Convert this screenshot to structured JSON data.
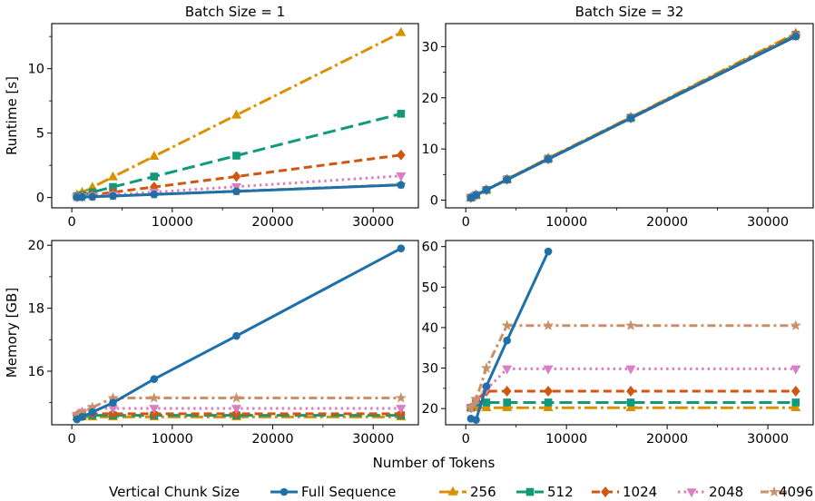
{
  "figure": {
    "xlabel": "Number of Tokens",
    "legend_title": "Vertical Chunk Size"
  },
  "colors": {
    "Full Sequence": "#1f6fa8",
    "256": "#d99100",
    "512": "#10997a",
    "1024": "#cf5711",
    "2048": "#d97fc4",
    "4096": "#c9916a"
  },
  "chart_data": [
    {
      "type": "line",
      "title": "Batch Size = 1",
      "ylabel": "Runtime [s]",
      "xlim": [
        -2000,
        34500
      ],
      "ylim": [
        -0.8,
        13.5
      ],
      "xticks": [
        0,
        10000,
        20000,
        30000
      ],
      "xtick_labels": [
        "0",
        "10000",
        "20000",
        "30000"
      ],
      "yticks": [
        0,
        5,
        10
      ],
      "ytick_labels": [
        "0",
        "5",
        "10"
      ],
      "x": [
        512,
        1024,
        2048,
        4096,
        8192,
        16384,
        32768
      ],
      "series": [
        {
          "name": "Full Sequence",
          "values": [
            0.02,
            0.03,
            0.06,
            0.12,
            0.24,
            0.48,
            0.98
          ]
        },
        {
          "name": "256",
          "values": [
            0.2,
            0.4,
            0.8,
            1.6,
            3.2,
            6.4,
            12.8
          ]
        },
        {
          "name": "512",
          "values": [
            0.1,
            0.2,
            0.41,
            0.82,
            1.63,
            3.25,
            6.5
          ]
        },
        {
          "name": "1024",
          "values": [
            0.06,
            0.1,
            0.2,
            0.41,
            0.82,
            1.63,
            3.3
          ]
        },
        {
          "name": "2048",
          "values": [
            0.04,
            0.06,
            0.11,
            0.21,
            0.42,
            0.84,
            1.68
          ]
        },
        {
          "name": "4096",
          "values": [
            0.03,
            0.05,
            0.07,
            0.13,
            0.25,
            0.5,
            1.0
          ]
        }
      ]
    },
    {
      "type": "line",
      "title": "Batch Size = 32",
      "ylabel": "",
      "xlim": [
        -2000,
        34500
      ],
      "ylim": [
        -1.5,
        34.5
      ],
      "xticks": [
        0,
        10000,
        20000,
        30000
      ],
      "xtick_labels": [
        "0",
        "10000",
        "20000",
        "30000"
      ],
      "yticks": [
        0,
        10,
        20,
        30
      ],
      "ytick_labels": [
        "0",
        "10",
        "20",
        "30"
      ],
      "x": [
        512,
        1024,
        2048,
        4096,
        8192,
        16384,
        32768
      ],
      "series": [
        {
          "name": "Full Sequence",
          "values": [
            0.5,
            1.0,
            2.0,
            4.0,
            8.0,
            16.0,
            32.0
          ]
        },
        {
          "name": "256",
          "values": [
            0.5,
            1.0,
            2.0,
            4.1,
            8.2,
            16.2,
            32.6
          ]
        },
        {
          "name": "512",
          "values": [
            0.5,
            1.0,
            2.0,
            4.05,
            8.1,
            16.1,
            32.3
          ]
        },
        {
          "name": "1024",
          "values": [
            0.5,
            1.0,
            2.0,
            4.05,
            8.1,
            16.1,
            32.3
          ]
        },
        {
          "name": "2048",
          "values": [
            0.5,
            1.0,
            2.0,
            4.0,
            8.0,
            16.0,
            32.1
          ]
        },
        {
          "name": "4096",
          "values": [
            0.5,
            1.0,
            2.0,
            4.0,
            8.0,
            16.0,
            32.0
          ]
        }
      ]
    },
    {
      "type": "line",
      "title": "",
      "ylabel": "Memory [GB]",
      "xlim": [
        -2000,
        34500
      ],
      "ylim": [
        14.3,
        20.15
      ],
      "xticks": [
        0,
        10000,
        20000,
        30000
      ],
      "xtick_labels": [
        "0",
        "10000",
        "20000",
        "30000"
      ],
      "yticks": [
        16,
        18,
        20
      ],
      "ytick_labels": [
        "16",
        "18",
        "20"
      ],
      "x": [
        512,
        1024,
        2048,
        4096,
        8192,
        16384,
        32768
      ],
      "series": [
        {
          "name": "Full Sequence",
          "values": [
            14.47,
            14.55,
            14.7,
            15.0,
            15.75,
            17.12,
            19.9
          ]
        },
        {
          "name": "256",
          "values": [
            14.55,
            14.55,
            14.55,
            14.55,
            14.55,
            14.55,
            14.55
          ]
        },
        {
          "name": "512",
          "values": [
            14.58,
            14.6,
            14.6,
            14.6,
            14.6,
            14.6,
            14.6
          ]
        },
        {
          "name": "1024",
          "values": [
            14.6,
            14.65,
            14.65,
            14.65,
            14.65,
            14.65,
            14.65
          ]
        },
        {
          "name": "2048",
          "values": [
            14.6,
            14.7,
            14.82,
            14.82,
            14.82,
            14.82,
            14.82
          ]
        },
        {
          "name": "4096",
          "values": [
            14.6,
            14.7,
            14.85,
            15.15,
            15.15,
            15.15,
            15.15
          ]
        }
      ]
    },
    {
      "type": "line",
      "title": "",
      "ylabel": "",
      "xlim": [
        -2000,
        34500
      ],
      "ylim": [
        16.0,
        61.5
      ],
      "xticks": [
        0,
        10000,
        20000,
        30000
      ],
      "xtick_labels": [
        "0",
        "10000",
        "20000",
        "30000"
      ],
      "yticks": [
        20,
        30,
        40,
        50,
        60
      ],
      "ytick_labels": [
        "20",
        "30",
        "40",
        "50",
        "60"
      ],
      "x": [
        512,
        1024,
        2048,
        4096,
        8192,
        16384,
        32768
      ],
      "series": [
        {
          "name": "Full Sequence",
          "values": [
            17.5,
            17.2,
            25.5,
            36.8,
            58.8,
            null,
            null
          ]
        },
        {
          "name": "256",
          "values": [
            20.2,
            20.2,
            20.2,
            20.2,
            20.2,
            20.2,
            20.2
          ]
        },
        {
          "name": "512",
          "values": [
            20.2,
            21.5,
            21.5,
            21.5,
            21.5,
            21.5,
            21.5
          ]
        },
        {
          "name": "1024",
          "values": [
            20.2,
            22.0,
            24.3,
            24.3,
            24.3,
            24.3,
            24.3
          ]
        },
        {
          "name": "2048",
          "values": [
            20.2,
            22.0,
            24.7,
            29.8,
            29.8,
            29.8,
            29.8
          ]
        },
        {
          "name": "4096",
          "values": [
            20.2,
            22.2,
            30.0,
            40.5,
            40.5,
            40.5,
            40.5
          ]
        }
      ]
    }
  ],
  "legend": {
    "title": "Vertical Chunk Size",
    "entries": [
      "Full Sequence",
      "256",
      "512",
      "1024",
      "2048",
      "4096"
    ],
    "placement": "bottom"
  }
}
